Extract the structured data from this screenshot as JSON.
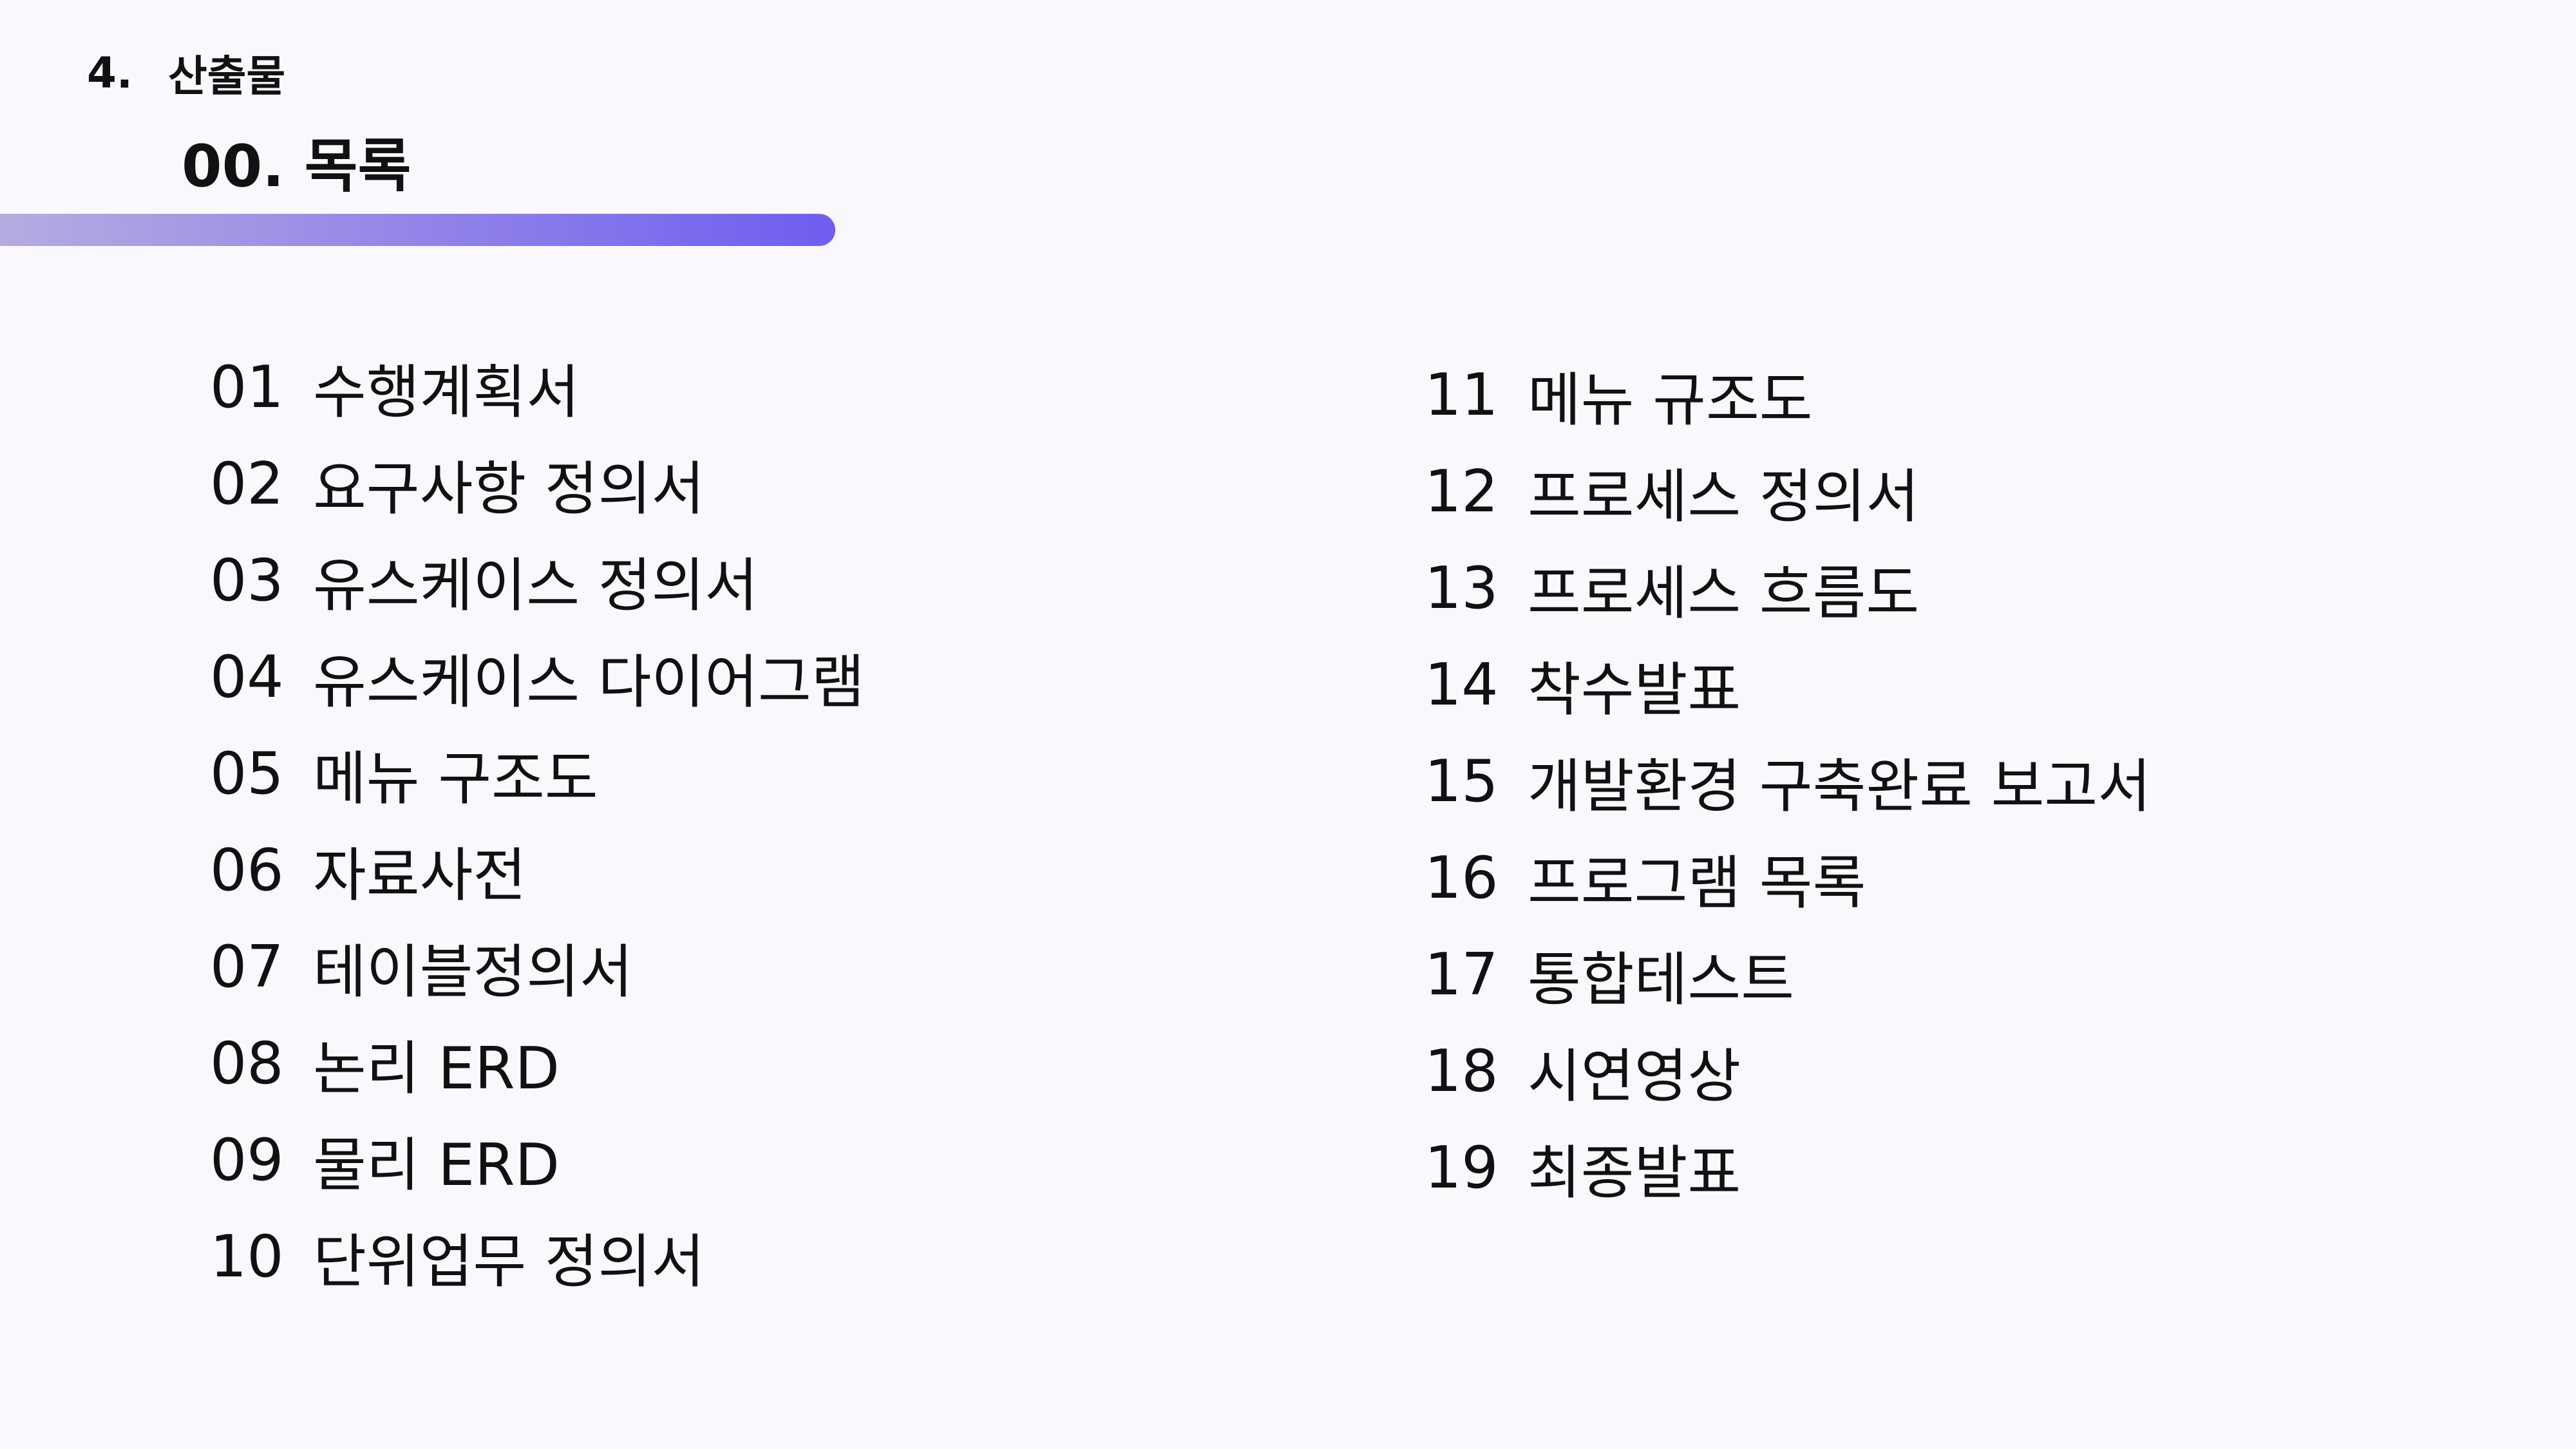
{
  "header": {
    "section_number": "4.",
    "section_title": "산출물",
    "page_title": "00. 목록"
  },
  "colors": {
    "background": "#fbf8fd",
    "accent_start": "#b6abe0",
    "accent_end": "#6f5ef0",
    "text": "#111111"
  },
  "toc": {
    "left": [
      {
        "num": "01",
        "label": "수행계획서"
      },
      {
        "num": "02",
        "label": "요구사항 정의서"
      },
      {
        "num": "03",
        "label": "유스케이스 정의서"
      },
      {
        "num": "04",
        "label": "유스케이스 다이어그램"
      },
      {
        "num": "05",
        "label": "메뉴 구조도"
      },
      {
        "num": "06",
        "label": "자료사전"
      },
      {
        "num": "07",
        "label": "테이블정의서"
      },
      {
        "num": "08",
        "label": "논리 ERD"
      },
      {
        "num": "09",
        "label": "물리 ERD"
      },
      {
        "num": "10",
        "label": "단위업무 정의서"
      }
    ],
    "right": [
      {
        "num": "11",
        "label": "메뉴 규조도"
      },
      {
        "num": "12",
        "label": "프로세스 정의서"
      },
      {
        "num": "13",
        "label": "프로세스 흐름도"
      },
      {
        "num": "14",
        "label": "착수발표"
      },
      {
        "num": "15",
        "label": "개발환경 구축완료 보고서"
      },
      {
        "num": "16",
        "label": "프로그램 목록"
      },
      {
        "num": "17",
        "label": "통합테스트"
      },
      {
        "num": "18",
        "label": "시연영상"
      },
      {
        "num": "19",
        "label": "최종발표"
      }
    ]
  }
}
